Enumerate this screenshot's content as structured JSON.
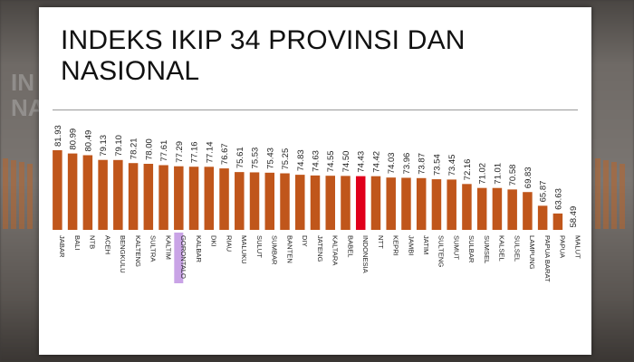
{
  "slide": {
    "title": "INDEKS IKIP 34 PROVINSI DAN NASIONAL"
  },
  "background": {
    "left_fragment": "IN\nNA"
  },
  "colors": {
    "bar": "#c0561b",
    "highlight_bar": "#e0001b",
    "highlight_label_bg": "#c9a3e6",
    "rule": "#9a9a9a"
  },
  "chart_data": {
    "type": "bar",
    "title": "INDEKS IKIP 34 PROVINSI DAN NASIONAL",
    "xlabel": "",
    "ylabel": "",
    "ylim": [
      0,
      85
    ],
    "grid": false,
    "legend": "none",
    "categories": [
      "JABAR",
      "BALI",
      "NTB",
      "ACEH",
      "BENGKULU",
      "KALTENG",
      "SULTRA",
      "KALTIM",
      "GORONTALO",
      "KALBAR",
      "DKI",
      "RIAU",
      "MALUKU",
      "SULUT",
      "SUMBAR",
      "BANTEN",
      "DIY",
      "JATENG",
      "KALTARA",
      "BABEL",
      "INDONESIA",
      "NTT",
      "KEPRI",
      "JAMBI",
      "JATIM",
      "SULTENG",
      "SUMUT",
      "SULBAR",
      "SUMSEL",
      "KALSEL",
      "SULSEL",
      "LAMPUNG",
      "PAPUA BARAT",
      "PAPUA",
      "MALUT"
    ],
    "values": [
      81.93,
      80.99,
      80.49,
      79.13,
      79.1,
      78.21,
      78.0,
      77.61,
      77.29,
      77.16,
      77.14,
      76.67,
      75.61,
      75.53,
      75.43,
      75.25,
      74.83,
      74.63,
      74.55,
      74.5,
      74.43,
      74.42,
      74.03,
      73.96,
      73.87,
      73.54,
      73.45,
      72.16,
      71.02,
      71.01,
      70.58,
      69.83,
      65.87,
      63.63,
      58.49
    ],
    "value_labels": [
      "81.93",
      "80.99",
      "80.49",
      "79.13",
      "79.10",
      "78.21",
      "78.00",
      "77.61",
      "77.29",
      "77.16",
      "77.14",
      "76.67",
      "75.61",
      "75.53",
      "75.43",
      "75.25",
      "74.83",
      "74.63",
      "74.55",
      "74.50",
      "74.43",
      "74.42",
      "74.03",
      "73.96",
      "73.87",
      "73.54",
      "73.45",
      "72.16",
      "71.02",
      "71.01",
      "70.58",
      "69.83",
      "65.87",
      "63.63",
      "58.49"
    ],
    "highlight_bar": "INDONESIA",
    "highlight_label": "GORONTALO"
  }
}
